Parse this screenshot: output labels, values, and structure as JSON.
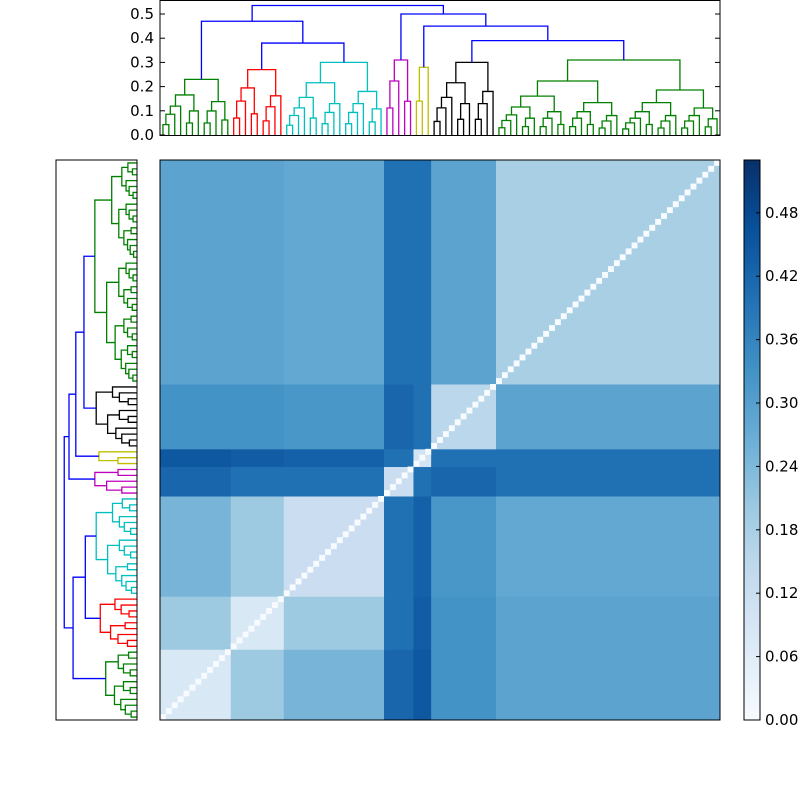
{
  "chart_data": {
    "type": "heatmap",
    "colormap": "Blues",
    "colorbar_range": [
      0,
      0.53
    ],
    "colorbar_ticks": [
      "0.00",
      "0.06",
      "0.12",
      "0.18",
      "0.24",
      "0.30",
      "0.36",
      "0.42",
      "0.48"
    ],
    "dendrogram_y_ticks": [
      "0.0",
      "0.1",
      "0.2",
      "0.3",
      "0.4",
      "0.5"
    ],
    "link_color": "#0000ff",
    "clusters": [
      {
        "id": "g1",
        "color": "#008000",
        "leaves": 12,
        "height": 0.23
      },
      {
        "id": "r",
        "color": "#ff0000",
        "leaves": 9,
        "height": 0.27
      },
      {
        "id": "c",
        "color": "#00bfbf",
        "leaves": 17,
        "height": 0.3
      },
      {
        "id": "m",
        "color": "#bf00bf",
        "leaves": 5,
        "height": 0.31
      },
      {
        "id": "y",
        "color": "#bfbf00",
        "leaves": 3,
        "height": 0.28
      },
      {
        "id": "k",
        "color": "#000000",
        "leaves": 11,
        "height": 0.3
      },
      {
        "id": "g2",
        "color": "#008000",
        "leaves": 38,
        "height": 0.31
      }
    ],
    "linkage": {
      "h": 0.535,
      "children": [
        {
          "h": 0.47,
          "children": [
            "g1",
            {
              "h": 0.38,
              "children": [
                "r",
                "c"
              ]
            }
          ]
        },
        {
          "h": 0.5,
          "children": [
            "m",
            {
              "h": 0.45,
              "children": [
                "y",
                {
                  "h": 0.39,
                  "children": [
                    "k",
                    "g2"
                  ]
                }
              ]
            }
          ]
        }
      ]
    },
    "block_means": [
      [
        0.08,
        0.2,
        0.25,
        0.42,
        0.45,
        0.33,
        0.29
      ],
      [
        0.2,
        0.08,
        0.2,
        0.4,
        0.44,
        0.33,
        0.29
      ],
      [
        0.25,
        0.2,
        0.12,
        0.4,
        0.43,
        0.32,
        0.28
      ],
      [
        0.42,
        0.4,
        0.4,
        0.12,
        0.4,
        0.42,
        0.4
      ],
      [
        0.45,
        0.44,
        0.43,
        0.4,
        0.1,
        0.4,
        0.4
      ],
      [
        0.33,
        0.33,
        0.32,
        0.42,
        0.4,
        0.15,
        0.29
      ],
      [
        0.29,
        0.29,
        0.28,
        0.4,
        0.4,
        0.29,
        0.18
      ]
    ],
    "diagonal_value": 0.0
  }
}
